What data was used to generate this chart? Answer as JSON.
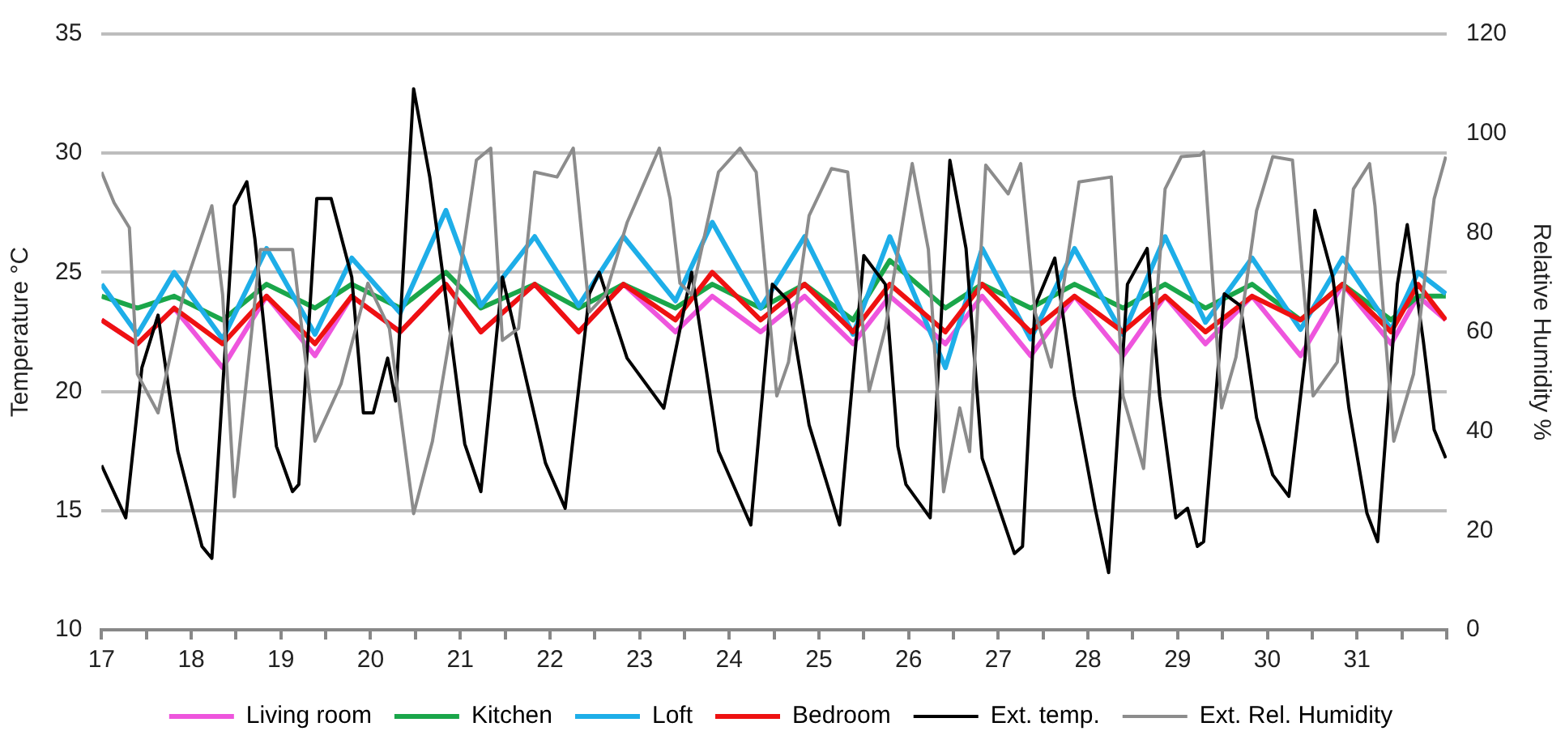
{
  "chart_data": {
    "type": "line",
    "xlabel": null,
    "ylabel": "Temperature °C",
    "y2label": "Relative Humidity %",
    "xlim": [
      17,
      32
    ],
    "xticks": [
      17,
      {
        "value": 17.5,
        "label": null
      },
      18,
      {
        "value": 18.5,
        "label": null
      },
      19,
      {
        "value": 19.5,
        "label": null
      },
      20,
      {
        "value": 20.5,
        "label": null
      },
      21,
      {
        "value": 21.5,
        "label": null
      },
      22,
      {
        "value": 22.5,
        "label": null
      },
      23,
      {
        "value": 23.5,
        "label": null
      },
      24,
      {
        "value": 24.5,
        "label": null
      },
      25,
      {
        "value": 25.5,
        "label": null
      },
      26,
      {
        "value": 26.5,
        "label": null
      },
      27,
      {
        "value": 27.5,
        "label": null
      },
      28,
      {
        "value": 28.5,
        "label": null
      },
      29,
      {
        "value": 29.5,
        "label": null
      },
      30,
      {
        "value": 30.5,
        "label": null
      },
      31,
      {
        "value": 31.5,
        "label": null
      },
      {
        "value": 32,
        "label": null
      }
    ],
    "ylim": [
      10,
      35
    ],
    "yticks": [
      10,
      15,
      20,
      25,
      30,
      35
    ],
    "y2lim": [
      0,
      120
    ],
    "y2ticks": [
      0,
      20,
      40,
      60,
      80,
      100,
      120
    ],
    "grid": "y",
    "legend": "bottom",
    "marker": "none",
    "line_style": "solid",
    "series": [
      {
        "name": "Living room",
        "color": "#ee55dd",
        "x": [
          17.0,
          17.4,
          17.81,
          18.35,
          18.84,
          19.38,
          19.79,
          20.33,
          20.84,
          21.23,
          21.83,
          22.32,
          22.82,
          23.4,
          23.81,
          24.35,
          24.84,
          25.38,
          25.79,
          26.41,
          26.82,
          27.36,
          27.85,
          28.39,
          28.86,
          29.31,
          29.83,
          30.37,
          30.84,
          31.38,
          31.68,
          31.99
        ],
        "values": [
          23.0,
          22.0,
          23.5,
          21.0,
          24.0,
          21.5,
          24.0,
          22.5,
          24.5,
          22.5,
          24.5,
          22.5,
          24.5,
          22.5,
          24.0,
          22.5,
          24.0,
          22.0,
          24.0,
          22.0,
          24.0,
          21.5,
          24.0,
          21.5,
          24.0,
          22.0,
          24.0,
          21.5,
          24.5,
          22.0,
          24.0,
          23.0
        ]
      },
      {
        "name": "Kitchen",
        "color": "#1aa64a",
        "x": [
          17.0,
          17.4,
          17.81,
          18.35,
          18.84,
          19.38,
          19.79,
          20.33,
          20.84,
          21.23,
          21.83,
          22.32,
          22.82,
          23.4,
          23.81,
          24.35,
          24.84,
          25.38,
          25.79,
          26.41,
          26.82,
          27.36,
          27.85,
          28.39,
          28.86,
          29.31,
          29.83,
          30.37,
          30.84,
          31.38,
          31.68,
          31.99
        ],
        "values": [
          24.0,
          23.5,
          24.0,
          23.0,
          24.5,
          23.5,
          24.5,
          23.5,
          25.0,
          23.5,
          24.5,
          23.5,
          24.5,
          23.5,
          24.5,
          23.5,
          24.5,
          23.0,
          25.5,
          23.5,
          24.5,
          23.5,
          24.5,
          23.5,
          24.5,
          23.5,
          24.5,
          23.0,
          24.5,
          23.0,
          24.0,
          24.0
        ]
      },
      {
        "name": "Loft",
        "color": "#1eaee8",
        "x": [
          17.0,
          17.4,
          17.81,
          18.35,
          18.84,
          19.38,
          19.79,
          20.33,
          20.84,
          21.23,
          21.83,
          22.32,
          22.82,
          23.4,
          23.81,
          24.35,
          24.84,
          25.38,
          25.79,
          26.41,
          26.82,
          27.36,
          27.85,
          28.39,
          28.86,
          29.31,
          29.83,
          30.37,
          30.84,
          31.38,
          31.68,
          31.99
        ],
        "values": [
          24.5,
          22.4,
          25.0,
          22.2,
          26.0,
          22.4,
          25.6,
          23.3,
          27.6,
          23.6,
          26.5,
          23.6,
          26.5,
          23.8,
          27.1,
          23.5,
          26.5,
          22.4,
          26.5,
          21.0,
          26.0,
          22.2,
          26.0,
          22.4,
          26.5,
          22.9,
          25.6,
          22.6,
          25.6,
          22.6,
          25.0,
          24.1
        ]
      },
      {
        "name": "Bedroom",
        "color": "#ee1111",
        "x": [
          17.0,
          17.4,
          17.81,
          18.35,
          18.84,
          19.38,
          19.79,
          20.33,
          20.84,
          21.23,
          21.83,
          22.32,
          22.82,
          23.4,
          23.81,
          24.35,
          24.84,
          25.38,
          25.79,
          26.41,
          26.82,
          27.36,
          27.85,
          28.39,
          28.86,
          29.31,
          29.83,
          30.37,
          30.84,
          31.38,
          31.68,
          31.99
        ],
        "values": [
          23.0,
          22.0,
          23.5,
          22.0,
          24.0,
          22.0,
          24.0,
          22.5,
          24.5,
          22.5,
          24.5,
          22.5,
          24.5,
          23.0,
          25.0,
          23.0,
          24.5,
          22.5,
          24.5,
          22.5,
          24.5,
          22.5,
          24.0,
          22.5,
          24.0,
          22.5,
          24.0,
          23.0,
          24.5,
          22.5,
          24.5,
          23.0
        ]
      },
      {
        "name": "Ext. temp.",
        "color": "#000000",
        "x": [
          17.0,
          17.27,
          17.45,
          17.63,
          17.85,
          18.12,
          18.23,
          18.48,
          18.62,
          18.71,
          18.95,
          19.13,
          19.2,
          19.4,
          19.56,
          19.79,
          19.92,
          20.03,
          20.19,
          20.28,
          20.48,
          20.66,
          20.82,
          21.05,
          21.23,
          21.47,
          21.65,
          21.95,
          22.17,
          22.44,
          22.55,
          22.86,
          23.27,
          23.58,
          23.88,
          24.24,
          24.48,
          24.66,
          24.89,
          25.23,
          25.5,
          25.74,
          25.88,
          25.97,
          26.24,
          26.46,
          26.64,
          26.82,
          27.18,
          27.27,
          27.41,
          27.63,
          27.85,
          28.08,
          28.23,
          28.44,
          28.66,
          28.8,
          28.98,
          29.11,
          29.22,
          29.29,
          29.52,
          29.7,
          29.88,
          30.06,
          30.24,
          30.42,
          30.53,
          30.73,
          30.91,
          31.11,
          31.23,
          31.45,
          31.56,
          31.74,
          31.86,
          31.99
        ],
        "values": [
          16.9,
          14.7,
          21.0,
          23.2,
          17.5,
          13.5,
          13.0,
          27.8,
          28.8,
          26.4,
          17.7,
          15.8,
          16.1,
          28.1,
          28.1,
          24.8,
          19.1,
          19.1,
          21.4,
          19.6,
          32.7,
          29.0,
          24.5,
          17.8,
          15.8,
          24.8,
          21.9,
          17.0,
          15.1,
          24.1,
          25.0,
          21.4,
          19.3,
          25.0,
          17.5,
          14.4,
          24.5,
          23.8,
          18.6,
          14.4,
          25.7,
          24.5,
          17.7,
          16.1,
          14.7,
          29.7,
          26.0,
          17.2,
          13.2,
          13.5,
          23.6,
          25.6,
          19.8,
          15.1,
          12.4,
          24.5,
          26.0,
          19.8,
          14.7,
          15.1,
          13.5,
          13.7,
          24.1,
          23.6,
          18.9,
          16.5,
          15.6,
          21.4,
          27.6,
          24.8,
          19.3,
          14.9,
          13.7,
          24.5,
          27.0,
          22.1,
          18.4,
          17.2
        ]
      },
      {
        "name": "Ext. Rel. Humidity",
        "color": "#8c8c8c",
        "axis": "y2",
        "x": [
          17.0,
          17.14,
          17.31,
          17.4,
          17.63,
          17.94,
          18.23,
          18.35,
          18.48,
          18.77,
          19.13,
          19.38,
          19.67,
          19.97,
          20.21,
          20.48,
          20.69,
          20.93,
          21.18,
          21.34,
          21.47,
          21.65,
          21.83,
          22.08,
          22.26,
          22.44,
          22.62,
          22.86,
          23.22,
          23.34,
          23.45,
          23.58,
          23.88,
          24.12,
          24.3,
          24.53,
          24.66,
          24.89,
          25.14,
          25.32,
          25.56,
          25.74,
          26.04,
          26.22,
          26.39,
          26.57,
          26.68,
          26.86,
          27.11,
          27.25,
          27.41,
          27.59,
          27.9,
          28.26,
          28.39,
          28.62,
          28.86,
          29.04,
          29.25,
          29.29,
          29.49,
          29.65,
          29.88,
          30.06,
          30.28,
          30.51,
          30.78,
          30.96,
          31.14,
          31.2,
          31.41,
          31.63,
          31.86,
          31.99
        ],
        "values": [
          92.2,
          86,
          81,
          51.5,
          43.7,
          69.8,
          85.4,
          67.5,
          26.8,
          76.6,
          76.6,
          38,
          49.5,
          69.8,
          60.7,
          23.4,
          38,
          64,
          94.6,
          97,
          58.3,
          60.7,
          92.2,
          91.2,
          97,
          64,
          67.5,
          82,
          97,
          86.8,
          69.8,
          67.5,
          92.2,
          97,
          92.2,
          47.1,
          53.9,
          83.4,
          92.9,
          92.2,
          48.1,
          60.7,
          93.9,
          76.6,
          27.8,
          44.7,
          35.9,
          93.6,
          87.8,
          93.9,
          64,
          52.9,
          90.2,
          91.2,
          47.1,
          32.5,
          88.8,
          95.3,
          95.6,
          96.3,
          44.7,
          54.9,
          84.4,
          95.3,
          94.6,
          47.1,
          53.9,
          88.8,
          93.9,
          85.4,
          38,
          51.5,
          86.8,
          95.3
        ]
      }
    ]
  }
}
